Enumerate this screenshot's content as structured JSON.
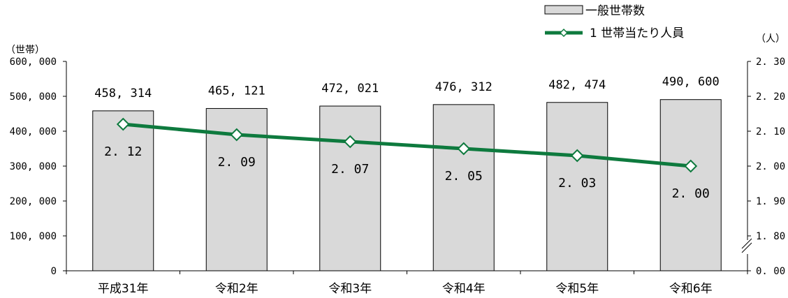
{
  "chart_data": {
    "type": "bar+line",
    "categories": [
      "平成31年",
      "令和2年",
      "令和3年",
      "令和4年",
      "令和5年",
      "令和6年"
    ],
    "series": [
      {
        "name": "一般世帯数",
        "type": "bar",
        "axis": "left",
        "values": [
          458314,
          465121,
          472021,
          476312,
          482474,
          490600
        ],
        "labels": [
          "458, 314",
          "465, 121",
          "472, 021",
          "476, 312",
          "482, 474",
          "490, 600"
        ],
        "color": "#d9d9d9"
      },
      {
        "name": "1世帯当たり人員",
        "type": "line",
        "axis": "right",
        "values": [
          2.12,
          2.09,
          2.07,
          2.05,
          2.03,
          2.0
        ],
        "labels": [
          "2. 12",
          "2. 09",
          "2. 07",
          "2. 05",
          "2. 03",
          "2. 00"
        ],
        "color": "#0e7a3e"
      }
    ],
    "left_axis": {
      "unit": "（世帯）",
      "ylim": [
        0,
        600000
      ],
      "ticks": [
        0,
        100000,
        200000,
        300000,
        400000,
        500000,
        600000
      ],
      "tick_labels": [
        "0",
        "100, 000",
        "200, 000",
        "300, 000",
        "400, 000",
        "500, 000",
        "600, 000"
      ]
    },
    "right_axis": {
      "unit": "（人）",
      "ylim": [
        1.8,
        2.3
      ],
      "ticks": [
        1.8,
        1.9,
        2.0,
        2.1,
        2.2,
        2.3
      ],
      "tick_labels": [
        "1. 80",
        "1. 90",
        "2. 00",
        "2. 10",
        "2. 20",
        "2. 30"
      ],
      "broken_axis": true,
      "zero_label": "0. 00"
    },
    "legend": {
      "position": "top-right",
      "entries": [
        "一般世帯数",
        "1世帯当たり人員"
      ],
      "entry_texts": [
        "一般世帯数",
        "1 世帯当たり人員"
      ]
    },
    "grid": false
  }
}
